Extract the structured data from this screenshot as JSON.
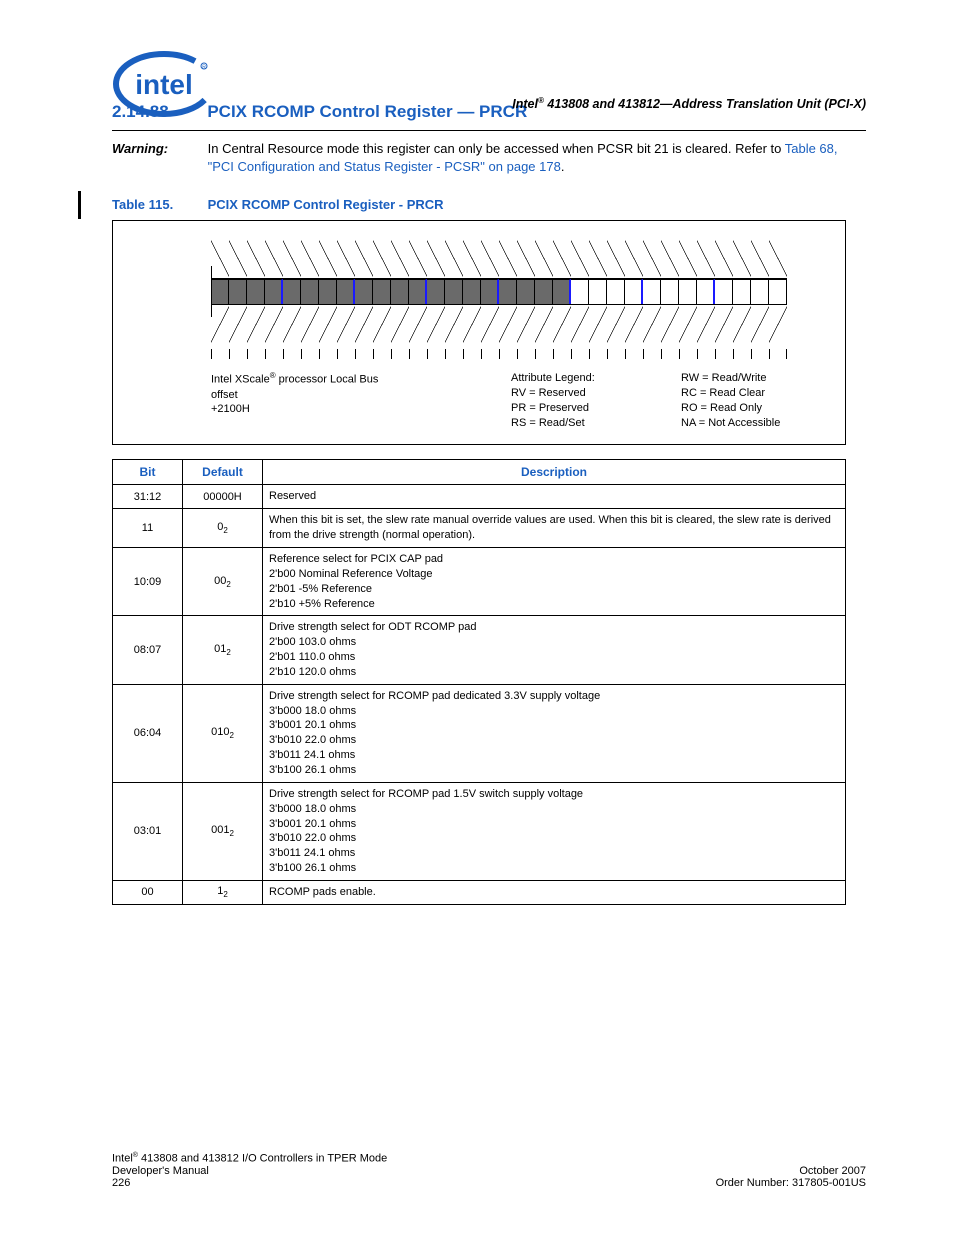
{
  "header": {
    "product": "Intel",
    "reg_mark": "®",
    "text": " 413808 and 413812—Address Translation Unit (PCI-X)"
  },
  "logo": {
    "word": "intel",
    "color": "#1a5fbf"
  },
  "section": {
    "number": "2.14.88",
    "title": "PCIX RCOMP Control Register — PRCR"
  },
  "warning": {
    "label": "Warning:",
    "text_pre": "In Central Resource mode this register can only be accessed when PCSR bit 21 is cleared. Refer to ",
    "link": "Table 68, \"PCI Configuration and Status Register - PCSR\" on page 178",
    "text_post": "."
  },
  "table_caption": {
    "number": "Table 115.",
    "title": "PCIX RCOMP Control Register - PRCR"
  },
  "diagram": {
    "bits": 32,
    "shaded_until_index": 20,
    "blue_boundaries": [
      4,
      8,
      12,
      16,
      20,
      24,
      28
    ],
    "bus_label_line1": "Intel XScale",
    "bus_label_sup": "®",
    "bus_label_line1b": " processor Local Bus",
    "bus_label_line2": "offset",
    "bus_label_line3": "+2100H",
    "legend_title": "Attribute Legend:",
    "legend_left": [
      "RV = Reserved",
      "PR = Preserved",
      "RS = Read/Set"
    ],
    "legend_right": [
      "RW = Read/Write",
      "RC = Read Clear",
      "RO = Read Only",
      "NA = Not Accessible"
    ]
  },
  "reg_table": {
    "headers": {
      "bit": "Bit",
      "default": "Default",
      "desc": "Description"
    },
    "col_widths": [
      "70px",
      "80px",
      "auto"
    ],
    "rows": [
      {
        "bit": "31:12",
        "default": "00000H",
        "sub": "",
        "desc": "Reserved"
      },
      {
        "bit": "11",
        "default": "0",
        "sub": "2",
        "desc": "When this bit is set, the slew rate manual override values are used. When this bit is cleared, the slew rate is derived from the drive strength (normal operation)."
      },
      {
        "bit": "10:09",
        "default": "00",
        "sub": "2",
        "desc": "Reference select for PCIX CAP pad\n2'b00   Nominal Reference Voltage\n2'b01 -5% Reference\n2'b10 +5% Reference"
      },
      {
        "bit": "08:07",
        "default": "01",
        "sub": "2",
        "desc": "Drive strength select for ODT RCOMP pad\n2'b00 103.0 ohms\n2'b01 110.0 ohms\n2'b10 120.0 ohms"
      },
      {
        "bit": "06:04",
        "default": "010",
        "sub": "2",
        "desc": "Drive strength select for RCOMP pad dedicated 3.3V supply voltage\n3'b000 18.0 ohms\n3'b001 20.1 ohms\n3'b010 22.0 ohms\n3'b011 24.1 ohms\n3'b100 26.1 ohms"
      },
      {
        "bit": "03:01",
        "default": "001",
        "sub": "2",
        "desc": "Drive strength select for RCOMP pad 1.5V switch supply voltage\n3'b000 18.0 ohms\n3'b001 20.1 ohms\n3'b010 22.0 ohms\n3'b011 24.1 ohms\n3'b100 26.1 ohms"
      },
      {
        "bit": "00",
        "default": "1",
        "sub": "2",
        "desc": "RCOMP pads enable."
      }
    ]
  },
  "footer": {
    "left_line1_a": "Intel",
    "left_line1_sup": "®",
    "left_line1_b": " 413808 and 413812 I/O Controllers in TPER Mode",
    "left_line2": "Developer's Manual",
    "left_line3": "226",
    "right_line1": "October 2007",
    "right_line2": "Order Number: 317805-001US"
  }
}
